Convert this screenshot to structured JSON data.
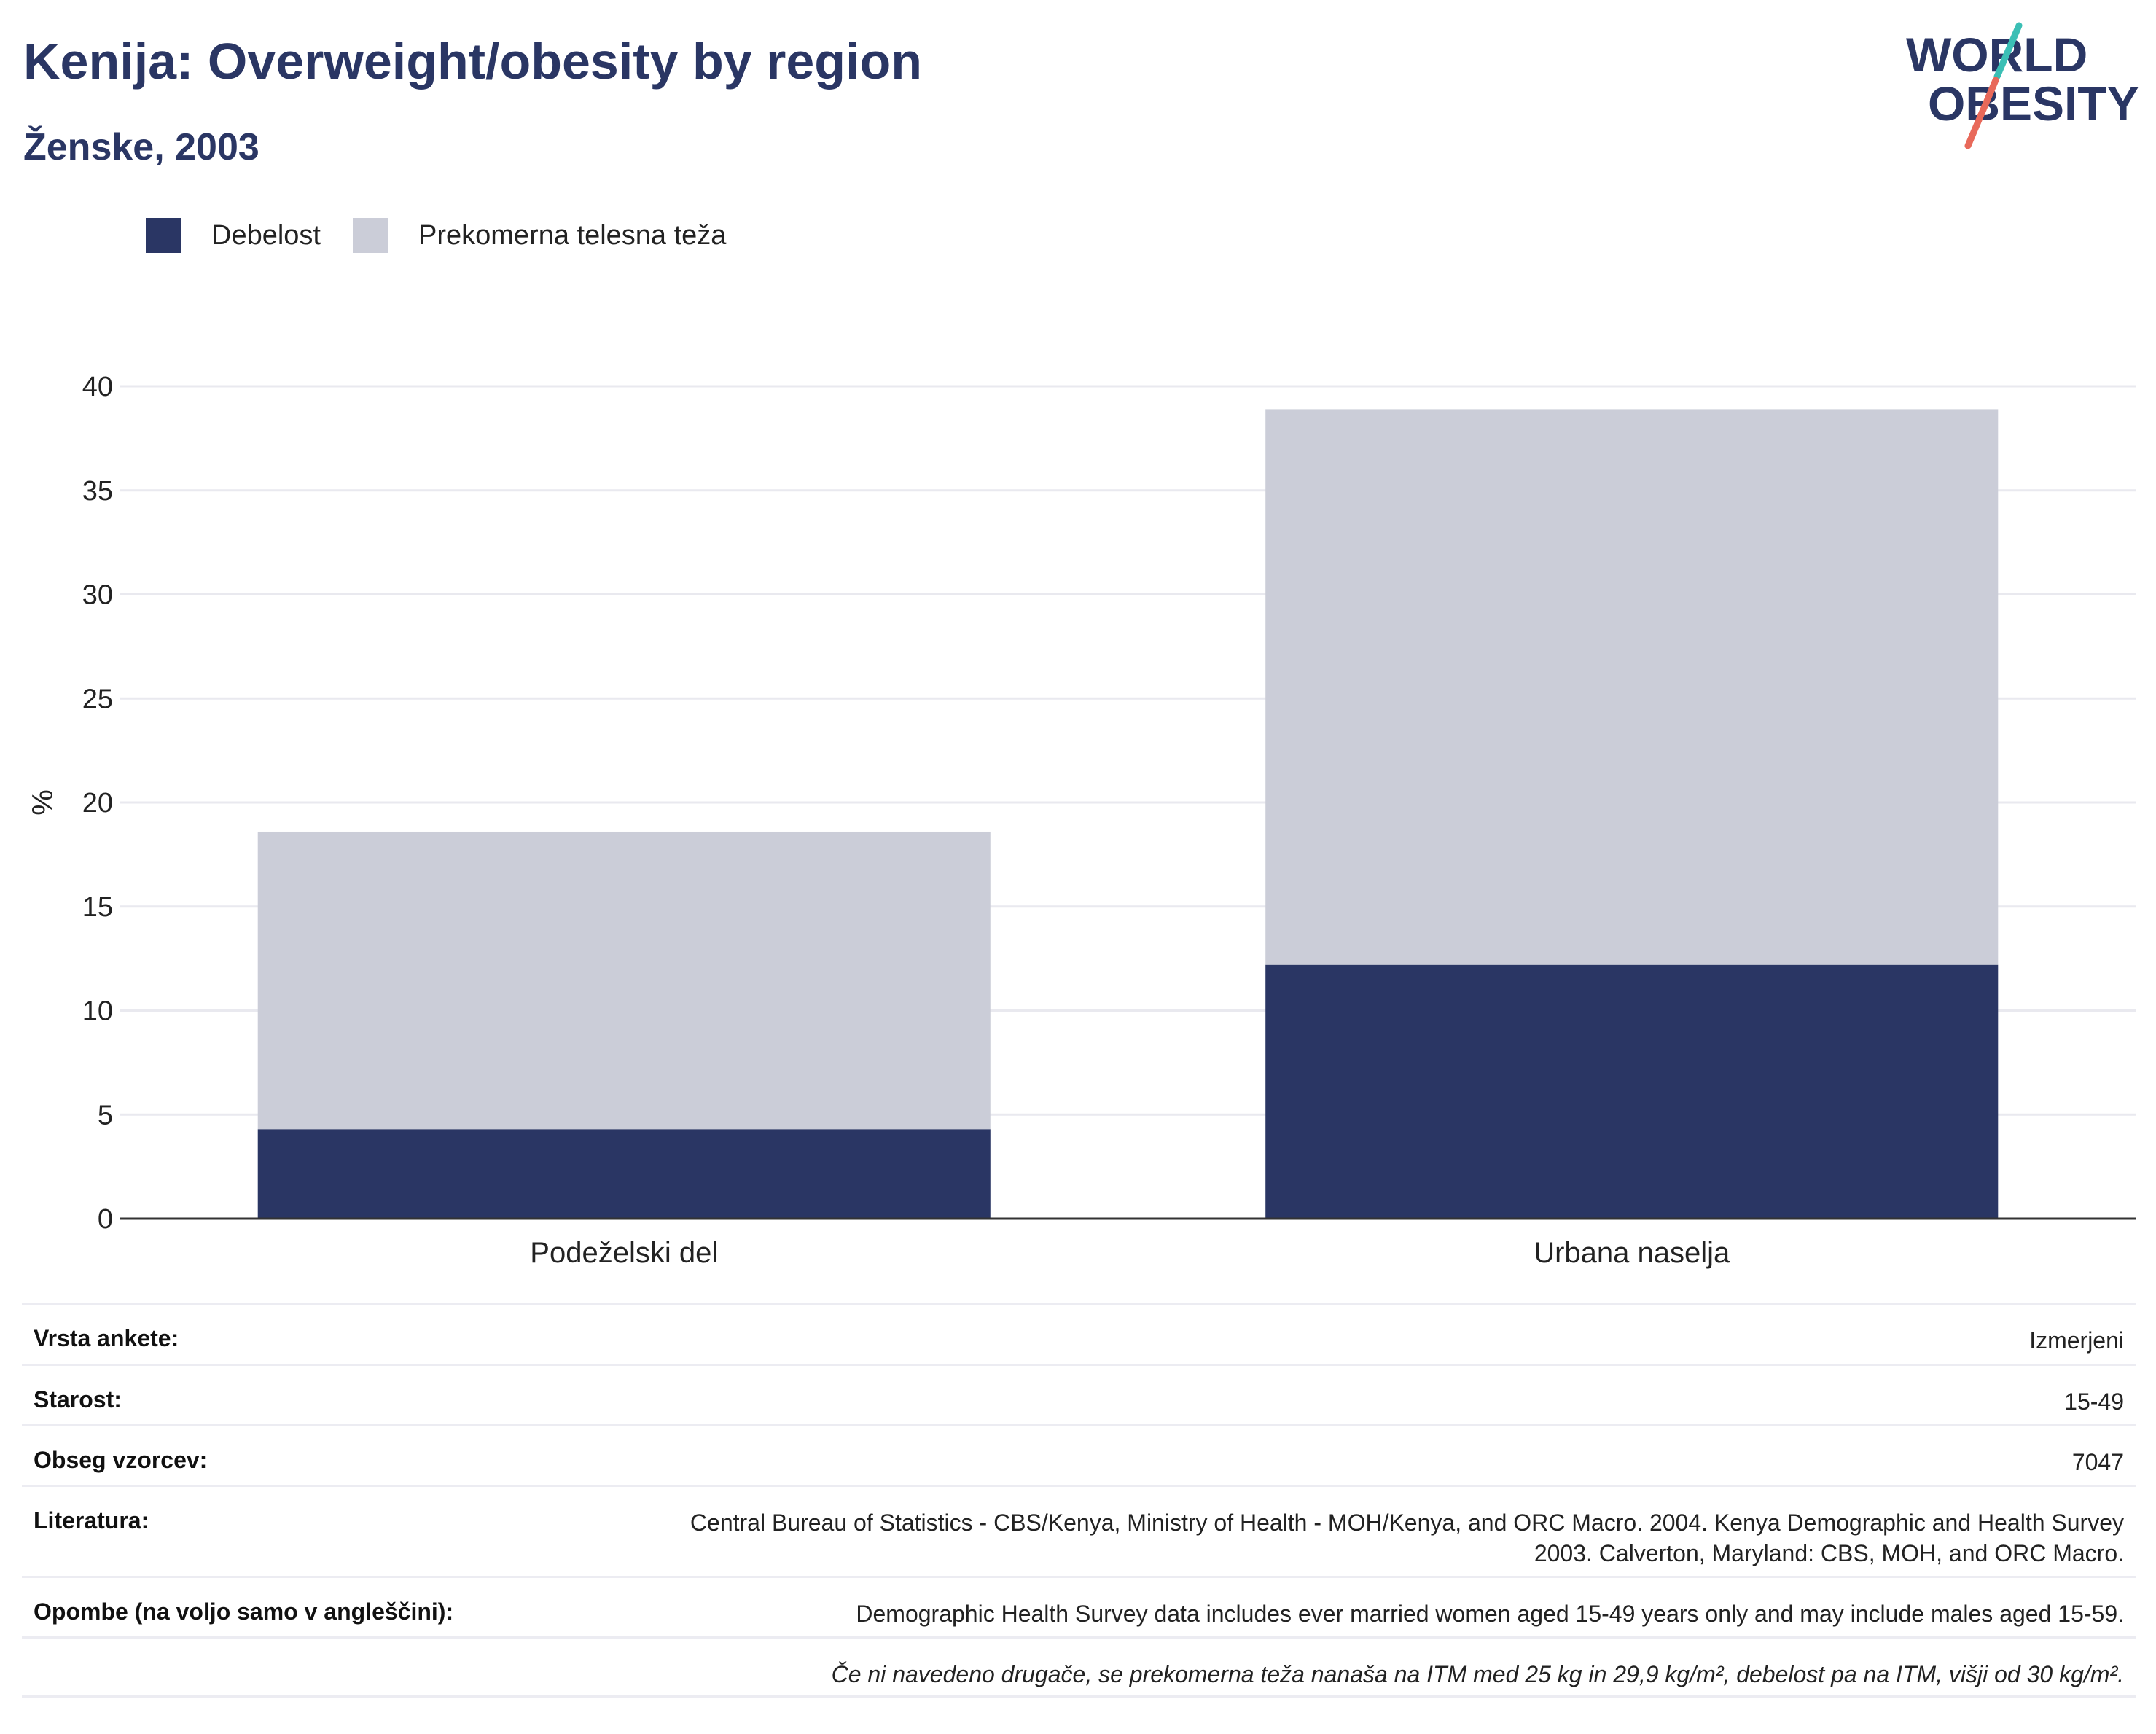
{
  "header": {
    "title": "Kenija: Overweight/obesity by region",
    "subtitle": "Ženske, 2003"
  },
  "logo": {
    "line1": "WORLD",
    "line2": "OBESITY"
  },
  "colors": {
    "obesity": "#2a3664",
    "overweight": "#cbcdd8",
    "title": "#2a3664",
    "logo_teal": "#3bbfb5",
    "logo_red": "#e8695a"
  },
  "legend": {
    "items": [
      {
        "label": "Debelost",
        "color": "#2a3664"
      },
      {
        "label": "Prekomerna telesna teža",
        "color": "#cbcdd8"
      }
    ]
  },
  "chart_data": {
    "type": "bar",
    "stacked": true,
    "categories": [
      "Podeželski del",
      "Urbana naselja"
    ],
    "series": [
      {
        "name": "Debelost",
        "values": [
          4.3,
          12.2
        ]
      },
      {
        "name": "Prekomerna telesna teža",
        "values": [
          14.3,
          26.7
        ]
      }
    ],
    "ylabel": "%",
    "xlabel": "",
    "ylim": [
      0,
      40
    ],
    "yticks": [
      0,
      5,
      10,
      15,
      20,
      25,
      30,
      35,
      40
    ],
    "grid": true,
    "legend_position": "top-left"
  },
  "info_table": {
    "rows": [
      {
        "label": "Vrsta ankete:",
        "value": "Izmerjeni"
      },
      {
        "label": "Starost:",
        "value": "15-49"
      },
      {
        "label": "Obseg vzorcev:",
        "value": "7047"
      },
      {
        "label": "Literatura:",
        "value": "Central Bureau of Statistics - CBS/Kenya, Ministry of Health - MOH/Kenya, and ORC Macro. 2004. Kenya Demographic and Health Survey 2003. Calverton, Maryland: CBS, MOH, and ORC Macro."
      },
      {
        "label": "Opombe (na voljo samo v angleščini):",
        "value": "Demographic Health Survey data includes ever married women aged 15-49 years only and may include males aged 15-59."
      }
    ],
    "footnote": "Če ni navedeno drugače, se prekomerna teža nanaša na ITM med 25 kg in 29,9 kg/m², debelost pa na ITM, višji od 30 kg/m²."
  }
}
